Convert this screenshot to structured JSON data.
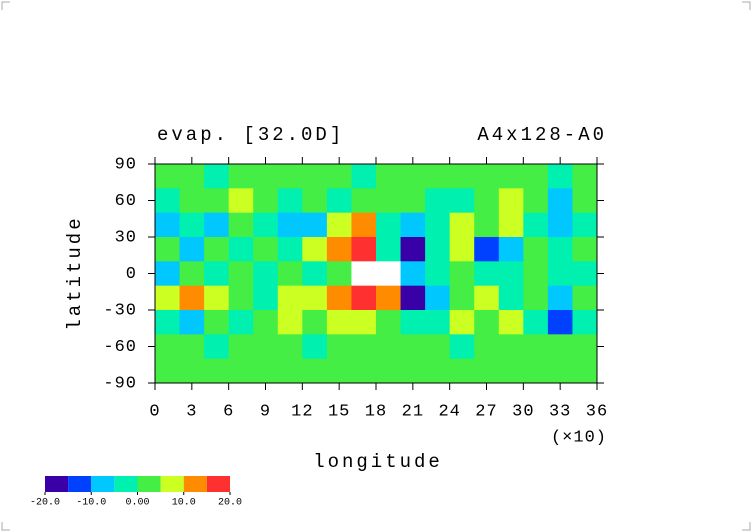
{
  "chart_data": {
    "type": "contour",
    "title": "evap. [32.0D]",
    "subtitle": "A4x128-A0",
    "x_label": "longitude",
    "x_scale_label": "(×10)",
    "y_label": "latitude",
    "xlim": [
      0,
      36
    ],
    "ylim": [
      -90,
      90
    ],
    "xticks": [
      0,
      3,
      6,
      9,
      12,
      15,
      18,
      21,
      24,
      27,
      30,
      33,
      36
    ],
    "yticks": [
      -90,
      -60,
      -30,
      0,
      30,
      60,
      90
    ],
    "x": [
      1,
      3,
      5,
      7,
      9,
      11,
      13,
      15,
      17,
      19,
      21,
      23,
      25,
      27,
      29,
      31,
      33,
      35
    ],
    "y": [
      80,
      60,
      40,
      20,
      0,
      -20,
      -40,
      -60,
      -80
    ],
    "z": [
      [
        2,
        2,
        -2,
        2,
        2,
        2,
        2,
        2,
        -2,
        2,
        2,
        2,
        2,
        2,
        2,
        2,
        -2,
        2
      ],
      [
        -2,
        2,
        3,
        7,
        2,
        -2,
        2,
        -2,
        2,
        2,
        2,
        -2,
        -2,
        2,
        7,
        2,
        -7,
        2
      ],
      [
        -7,
        -2,
        -7,
        2,
        -2,
        -7,
        -7,
        7,
        12,
        -2,
        -7,
        -2,
        7,
        2,
        7,
        -2,
        -7,
        -2
      ],
      [
        2,
        -7,
        2,
        -2,
        2,
        -2,
        7,
        12,
        17,
        -2,
        -18,
        -2,
        7,
        -12,
        -7,
        2,
        -2,
        2
      ],
      [
        -7,
        2,
        -2,
        2,
        -2,
        2,
        -2,
        2,
        25,
        25,
        -7,
        -2,
        2,
        -2,
        -2,
        2,
        -2,
        -2
      ],
      [
        7,
        12,
        7,
        2,
        -2,
        7,
        7,
        12,
        17,
        12,
        -17,
        -7,
        2,
        7,
        -2,
        2,
        -7,
        2
      ],
      [
        -2,
        -7,
        2,
        -2,
        2,
        7,
        2,
        7,
        7,
        2,
        -2,
        -2,
        7,
        2,
        7,
        -2,
        -12,
        -2
      ],
      [
        2,
        2,
        -2,
        2,
        2,
        2,
        -2,
        2,
        2,
        2,
        2,
        2,
        -2,
        2,
        2,
        2,
        2,
        2
      ],
      [
        2,
        2,
        2,
        2,
        2,
        2,
        2,
        2,
        2,
        2,
        2,
        2,
        2,
        2,
        2,
        2,
        2,
        2
      ]
    ],
    "levels": [
      -20,
      -15,
      -10,
      -5,
      0,
      5,
      10,
      15,
      20
    ],
    "colors": [
      "#3a00a8",
      "#0040ff",
      "#00c8ff",
      "#00f0b0",
      "#44ee44",
      "#ccff22",
      "#ff8c00",
      "#ff3030"
    ],
    "over_color": "#ffffff",
    "colorbar_ticks": [
      {
        "value": -20,
        "label": "-20.0"
      },
      {
        "value": -10,
        "label": "-10.0"
      },
      {
        "value": 0,
        "label": "0.00"
      },
      {
        "value": 10,
        "label": "10.0"
      },
      {
        "value": 20,
        "label": "20.0"
      }
    ]
  }
}
